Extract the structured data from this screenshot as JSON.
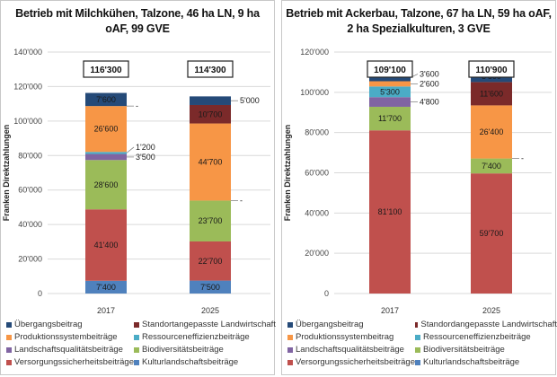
{
  "chart_data": [
    {
      "type": "bar",
      "stacked": true,
      "title": "Betrieb mit Milchkühen, Talzone, 46 ha LN, 9 ha oAF, 99 GVE",
      "ylabel": "Franken Direktzahlungen",
      "ylim": [
        0,
        140000
      ],
      "yticks": [
        "0",
        "20'000",
        "40'000",
        "60'000",
        "80'000",
        "100'000",
        "120'000",
        "140'000"
      ],
      "grid": true,
      "legend": "bottom",
      "categories": [
        "2017",
        "2025"
      ],
      "totals": [
        "116'300",
        "114'300"
      ],
      "series": [
        {
          "name": "Kulturlandschaftsbeiträge",
          "color": "#4f81bd",
          "values": [
            7400,
            7500
          ],
          "labels": [
            "7'400",
            "7'500"
          ]
        },
        {
          "name": "Versorgungssicherheitsbeiträge",
          "color": "#c0504d",
          "values": [
            41400,
            22700
          ],
          "labels": [
            "41'400",
            "22'700"
          ]
        },
        {
          "name": "Biodiversitätsbeiträge",
          "color": "#9bbb59",
          "values": [
            28600,
            23700
          ],
          "labels": [
            "28'600",
            "23'700"
          ]
        },
        {
          "name": "Landschaftsqualitätsbeiträge",
          "color": "#8064a2",
          "values": [
            3500,
            0
          ],
          "labels": [
            "3'500",
            "-"
          ]
        },
        {
          "name": "Ressourceneffizienzbeiträge",
          "color": "#4bacc6",
          "values": [
            1200,
            0
          ],
          "labels": [
            "1'200",
            ""
          ]
        },
        {
          "name": "Produktionssystembeiträge",
          "color": "#f79646",
          "values": [
            26600,
            44700
          ],
          "labels": [
            "26'600",
            "44'700"
          ]
        },
        {
          "name": "Standortangepasste Landwirtschaft",
          "color": "#7b2a2a",
          "values": [
            0,
            10700
          ],
          "labels": [
            "-",
            "10'700"
          ]
        },
        {
          "name": "Übergangsbeitrag",
          "color": "#254a78",
          "values": [
            7600,
            5000
          ],
          "labels": [
            "7'600",
            "5'000"
          ]
        }
      ],
      "legend_order": [
        "Übergangsbeitrag",
        "Standortangepasste Landwirtschaft",
        "Produktionssystembeiträge",
        "Ressourceneffizienzbeiträge",
        "Landschaftsqualitätsbeiträge",
        "Biodiversitätsbeiträge",
        "Versorgungssicherheitsbeiträge",
        "Kulturlandschaftsbeiträge"
      ]
    },
    {
      "type": "bar",
      "stacked": true,
      "title": "Betrieb mit Ackerbau, Talzone, 67 ha LN, 59 ha oAF, 2 ha Spezialkulturen, 3 GVE",
      "ylabel": "Franken Direktzahlungen",
      "ylim": [
        0,
        120000
      ],
      "yticks": [
        "0",
        "20'000",
        "40'000",
        "60'000",
        "80'000",
        "100'000",
        "120'000"
      ],
      "grid": true,
      "legend": "bottom",
      "categories": [
        "2017",
        "2025"
      ],
      "totals": [
        "109'100",
        "110'900"
      ],
      "series": [
        {
          "name": "Kulturlandschaftsbeiträge",
          "color": "#4f81bd",
          "values": [
            0,
            0
          ],
          "labels": [
            "",
            ""
          ]
        },
        {
          "name": "Versorgungssicherheitsbeiträge",
          "color": "#c0504d",
          "values": [
            81100,
            59700
          ],
          "labels": [
            "81'100",
            "59'700"
          ]
        },
        {
          "name": "Biodiversitätsbeiträge",
          "color": "#9bbb59",
          "values": [
            11700,
            7400
          ],
          "labels": [
            "11'700",
            "7'400"
          ]
        },
        {
          "name": "Landschaftsqualitätsbeiträge",
          "color": "#8064a2",
          "values": [
            4800,
            0
          ],
          "labels": [
            "4'800",
            "-"
          ]
        },
        {
          "name": "Ressourceneffizienzbeiträge",
          "color": "#4bacc6",
          "values": [
            5300,
            0
          ],
          "labels": [
            "5'300",
            ""
          ]
        },
        {
          "name": "Produktionssystembeitrag",
          "color": "#f79646",
          "values": [
            2600,
            26400
          ],
          "labels": [
            "2'600",
            "26'400"
          ]
        },
        {
          "name": "Standordangepasste Landwirtschaft",
          "color": "#7b2a2a",
          "values": [
            0,
            11600
          ],
          "labels": [
            "",
            "11'600"
          ]
        },
        {
          "name": "Übergangsbeitrag",
          "color": "#254a78",
          "values": [
            3600,
            5800
          ],
          "labels": [
            "3'600",
            "5'800"
          ]
        }
      ],
      "legend_order": [
        "Übergangsbeitrag",
        "Standordangepasste Landwirtschaft",
        "Produktionssystembeitrag",
        "Ressourceneffizienzbeiträge",
        "Landschaftsqualitätsbeiträge",
        "Biodiversitätsbeiträge",
        "Versorgungssicherheitsbeiträge",
        "Kulturlandschaftsbeiträge"
      ]
    }
  ]
}
